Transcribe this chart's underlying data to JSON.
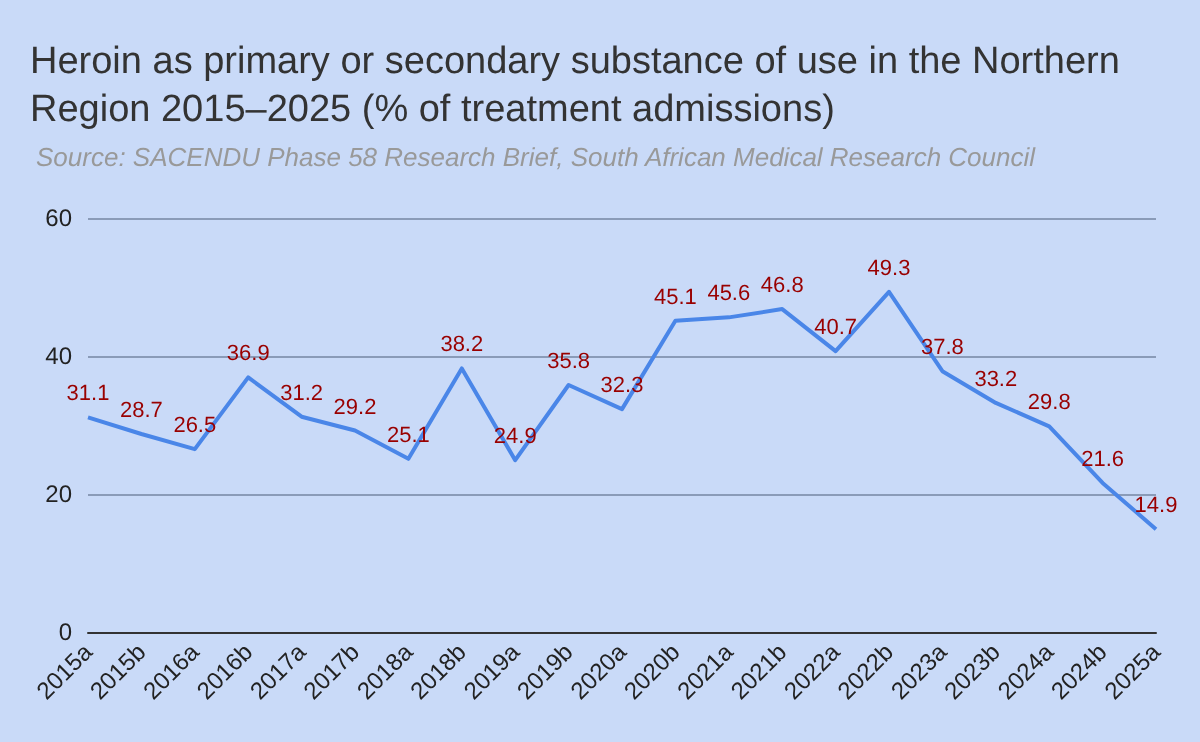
{
  "chart_data": {
    "type": "line",
    "title": "Heroin as primary or secondary substance of use in the Northern Region 2015–2025 (% of treatment admissions)",
    "annotations": [
      "Source: SACENDU Phase 58 Research Brief, South African Medical Research Council"
    ],
    "categories": [
      "2015a",
      "2015b",
      "2016a",
      "2016b",
      "2017a",
      "2017b",
      "2018a",
      "2018b",
      "2019a",
      "2019b",
      "2020a",
      "2020b",
      "2021a",
      "2021b",
      "2022a",
      "2022b",
      "2023a",
      "2023b",
      "2024a",
      "2024b",
      "2025a"
    ],
    "series": [
      {
        "color": "#4a86e8",
        "values": [
          31.1,
          28.7,
          26.5,
          36.9,
          31.2,
          29.2,
          25.1,
          38.2,
          24.9,
          35.8,
          32.3,
          45.1,
          45.6,
          46.8,
          40.7,
          49.3,
          37.8,
          33.2,
          29.8,
          21.6,
          14.9
        ]
      }
    ],
    "ylim": [
      0,
      60
    ],
    "yticks": [
      0,
      20,
      40,
      60
    ],
    "grid": "y",
    "data_labels": true,
    "marker": "none",
    "line_style": "solid"
  }
}
